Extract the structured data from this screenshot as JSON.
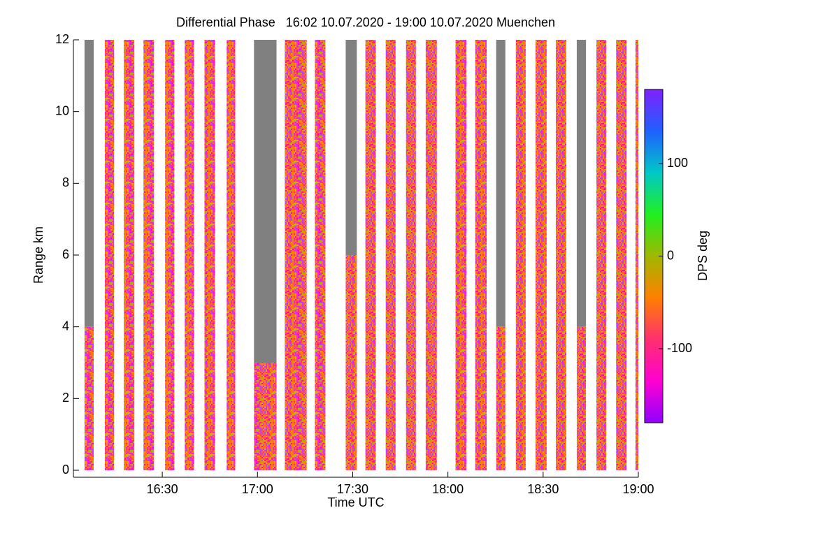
{
  "chart_data": {
    "type": "time-height",
    "title": "Differential Phase   16:02 10.07.2020 - 19:00 10.07.2020 Muenchen",
    "x_label": "Time UTC",
    "y_label": "Range km",
    "xlim": [
      962,
      1140
    ],
    "xticks": [
      {
        "value": 990,
        "label": "16:30"
      },
      {
        "value": 1020,
        "label": "17:00"
      },
      {
        "value": 1050,
        "label": "17:30"
      },
      {
        "value": 1080,
        "label": "18:00"
      },
      {
        "value": 1110,
        "label": "18:30"
      },
      {
        "value": 1140,
        "label": "19:00"
      }
    ],
    "ylim": [
      0,
      12
    ],
    "yticks": [
      0,
      2,
      4,
      6,
      8,
      10,
      12
    ],
    "no_data_color": "#808080",
    "scans": [
      {
        "start": 965.5,
        "end": 968.4,
        "echo_top": 4
      },
      {
        "start": 971.9,
        "end": 974.8,
        "echo_top": 12
      },
      {
        "start": 977.9,
        "end": 981.2,
        "echo_top": 12
      },
      {
        "start": 984.1,
        "end": 987.4,
        "echo_top": 12
      },
      {
        "start": 990.9,
        "end": 993.8,
        "echo_top": 12
      },
      {
        "start": 997.1,
        "end": 1000,
        "echo_top": 12
      },
      {
        "start": 1003.3,
        "end": 1006.6,
        "echo_top": 12
      },
      {
        "start": 1010.3,
        "end": 1013,
        "echo_top": 12
      },
      {
        "start": 1018.9,
        "end": 1026,
        "echo_top": 3
      },
      {
        "start": 1028.6,
        "end": 1035.5,
        "echo_top": 12
      },
      {
        "start": 1038.1,
        "end": 1041.4,
        "echo_top": 12
      },
      {
        "start": 1047.8,
        "end": 1051.3,
        "echo_top": 6
      },
      {
        "start": 1054,
        "end": 1057.3,
        "echo_top": 12
      },
      {
        "start": 1060.4,
        "end": 1063.5,
        "echo_top": 12
      },
      {
        "start": 1066.8,
        "end": 1069.9,
        "echo_top": 12
      },
      {
        "start": 1073,
        "end": 1076.5,
        "echo_top": 12
      },
      {
        "start": 1082.4,
        "end": 1085.8,
        "echo_top": 12
      },
      {
        "start": 1088.6,
        "end": 1092.2,
        "echo_top": 12
      },
      {
        "start": 1095.2,
        "end": 1098.1,
        "echo_top": 4
      },
      {
        "start": 1101.4,
        "end": 1104.5,
        "echo_top": 12
      },
      {
        "start": 1107.6,
        "end": 1111.1,
        "echo_top": 12
      },
      {
        "start": 1114,
        "end": 1117.3,
        "echo_top": 12
      },
      {
        "start": 1120.6,
        "end": 1123.5,
        "echo_top": 4
      },
      {
        "start": 1126.8,
        "end": 1129.9,
        "echo_top": 12
      },
      {
        "start": 1133,
        "end": 1136.3,
        "echo_top": 12
      },
      {
        "start": 1139.1,
        "end": 1140,
        "echo_top": 12
      }
    ],
    "colorbar": {
      "label": "DPS deg",
      "lim": [
        -180,
        180
      ],
      "ticks": [
        -100,
        0,
        100
      ],
      "colors": [
        "#9000ff",
        "#ff00d0",
        "#ff3070",
        "#ff8000",
        "#a0b800",
        "#20f020",
        "#00c8c8",
        "#2060ff",
        "#8020ff"
      ]
    }
  }
}
